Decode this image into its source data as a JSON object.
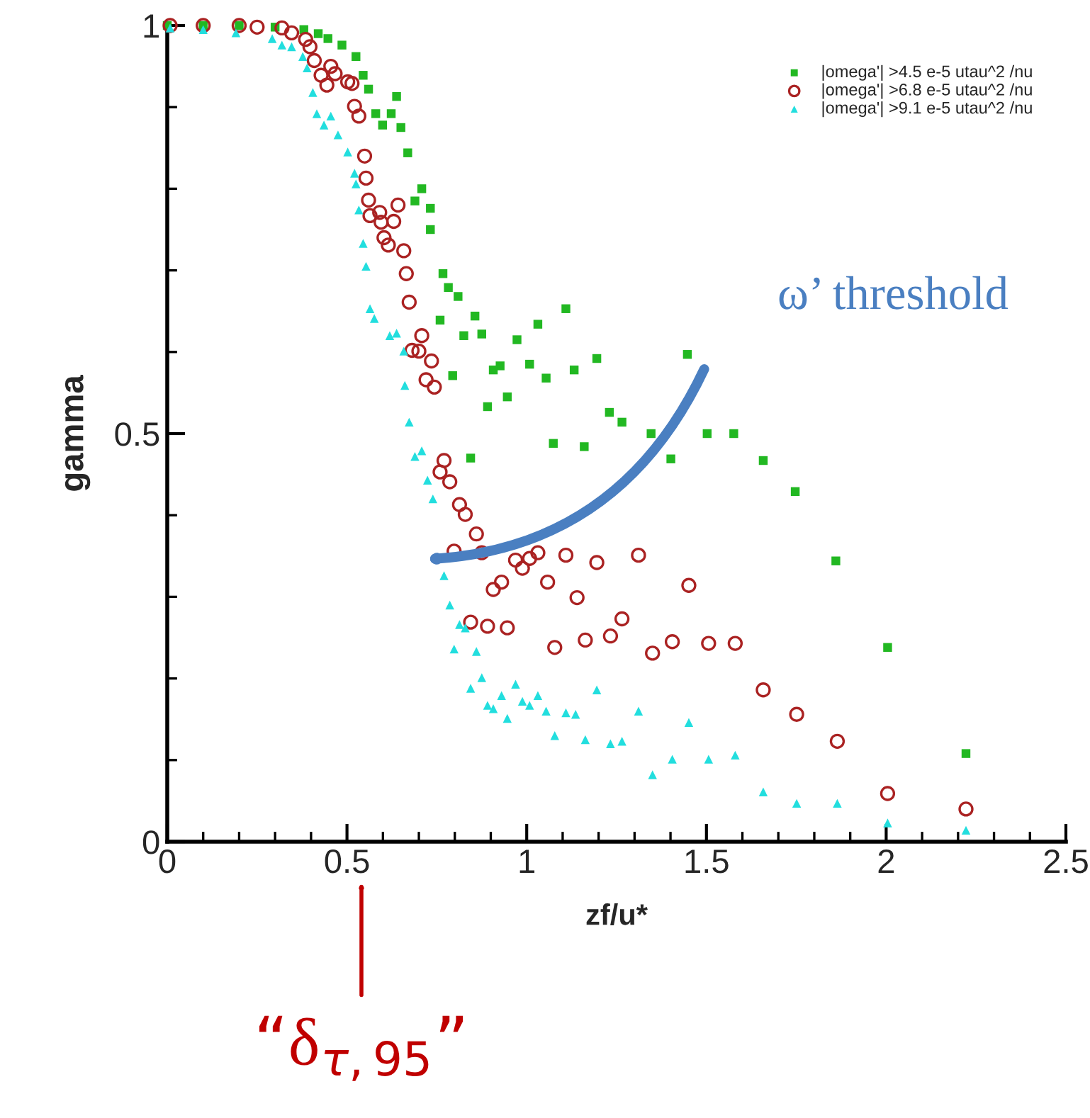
{
  "chart_data": {
    "type": "scatter",
    "xlabel": "zf/u*",
    "ylabel": "gamma",
    "xlim": [
      0,
      2.5
    ],
    "ylim": [
      0,
      1
    ],
    "xticks": [
      0,
      0.5,
      1,
      1.5,
      2,
      2.5
    ],
    "yticks": [
      0,
      0.5,
      1
    ],
    "grid": false,
    "legend": "top right",
    "series": [
      {
        "name": "|omega'| >4.5 e-5 utau^2 /nu",
        "color": "#22b822",
        "marker": "square",
        "x": [
          0,
          0.1,
          0.2,
          0.3,
          0.38,
          0.42,
          0.447,
          0.486,
          0.525,
          0.545,
          0.56,
          0.58,
          0.623,
          0.599,
          0.638,
          0.65,
          0.669,
          0.708,
          0.689,
          0.732,
          0.732,
          0.767,
          0.782,
          0.809,
          0.856,
          0.759,
          0.825,
          0.875,
          0.973,
          1.031,
          1.109,
          0.926,
          0.907,
          1.008,
          1.054,
          1.132,
          1.195,
          0.794,
          0.946,
          0.891,
          1.074,
          1.16,
          0.844,
          1.447,
          1.23,
          1.265,
          1.346,
          1.502,
          1.576,
          1.401,
          1.658,
          1.747,
          1.86,
          2.004,
          2.222
        ],
        "values": [
          1,
          1,
          1,
          0.998,
          0.995,
          0.99,
          0.984,
          0.976,
          0.962,
          0.939,
          0.922,
          0.892,
          0.892,
          0.878,
          0.913,
          0.875,
          0.844,
          0.8,
          0.785,
          0.776,
          0.75,
          0.696,
          0.679,
          0.668,
          0.644,
          0.639,
          0.62,
          0.622,
          0.615,
          0.634,
          0.653,
          0.583,
          0.578,
          0.585,
          0.568,
          0.578,
          0.592,
          0.571,
          0.545,
          0.533,
          0.488,
          0.484,
          0.47,
          0.597,
          0.526,
          0.514,
          0.5,
          0.5,
          0.5,
          0.469,
          0.467,
          0.429,
          0.344,
          0.238,
          0.108
        ]
      },
      {
        "name": "|omega'| >6.8 e-5 utau^2 /nu",
        "color": "#aa2222",
        "marker": "circle",
        "x": [
          0.008,
          0.1,
          0.2,
          0.25,
          0.319,
          0.346,
          0.385,
          0.397,
          0.409,
          0.455,
          0.467,
          0.428,
          0.444,
          0.502,
          0.514,
          0.521,
          0.533,
          0.549,
          0.553,
          0.56,
          0.564,
          0.591,
          0.642,
          0.63,
          0.595,
          0.603,
          0.615,
          0.658,
          0.665,
          0.673,
          0.708,
          0.681,
          0.7,
          0.735,
          0.72,
          0.743,
          0.77,
          0.759,
          0.786,
          0.813,
          0.829,
          0.86,
          0.798,
          0.875,
          0.969,
          1.008,
          1.031,
          0.988,
          1.109,
          1.195,
          1.311,
          0.93,
          0.907,
          1.058,
          1.14,
          1.451,
          1.265,
          0.844,
          0.891,
          0.946,
          1.078,
          1.163,
          1.233,
          1.405,
          1.35,
          1.506,
          1.58,
          1.658,
          1.751,
          1.864,
          2.004,
          2.222
        ],
        "values": [
          1,
          1,
          1,
          0.998,
          0.997,
          0.991,
          0.983,
          0.974,
          0.957,
          0.95,
          0.941,
          0.939,
          0.927,
          0.931,
          0.929,
          0.901,
          0.889,
          0.84,
          0.813,
          0.786,
          0.767,
          0.771,
          0.78,
          0.76,
          0.759,
          0.74,
          0.731,
          0.724,
          0.696,
          0.661,
          0.62,
          0.602,
          0.601,
          0.589,
          0.566,
          0.557,
          0.467,
          0.453,
          0.441,
          0.413,
          0.401,
          0.377,
          0.356,
          0.354,
          0.345,
          0.347,
          0.354,
          0.335,
          0.351,
          0.342,
          0.351,
          0.318,
          0.309,
          0.318,
          0.299,
          0.314,
          0.273,
          0.269,
          0.264,
          0.262,
          0.238,
          0.247,
          0.252,
          0.245,
          0.231,
          0.243,
          0.243,
          0.186,
          0.156,
          0.123,
          0.059,
          0.04
        ]
      },
      {
        "name": "|omega'| >9.1 e-5 utau^2 /nu",
        "color": "#22dede",
        "marker": "triangle",
        "x": [
          0.008,
          0.1,
          0.191,
          0.292,
          0.319,
          0.346,
          0.377,
          0.389,
          0.405,
          0.416,
          0.436,
          0.455,
          0.475,
          0.502,
          0.521,
          0.525,
          0.533,
          0.545,
          0.553,
          0.564,
          0.576,
          0.619,
          0.638,
          0.658,
          0.661,
          0.673,
          0.689,
          0.708,
          0.724,
          0.739,
          0.77,
          0.786,
          0.813,
          0.829,
          0.798,
          0.86,
          0.875,
          0.844,
          0.891,
          0.907,
          0.93,
          0.969,
          0.988,
          1.008,
          1.031,
          0.946,
          1.054,
          1.109,
          1.136,
          1.195,
          1.078,
          1.163,
          1.233,
          1.265,
          1.311,
          1.451,
          1.35,
          1.405,
          1.506,
          1.58,
          1.658,
          1.751,
          1.864,
          2.004,
          2.222
        ],
        "values": [
          0.997,
          0.995,
          0.991,
          0.984,
          0.976,
          0.974,
          0.962,
          0.948,
          0.918,
          0.892,
          0.878,
          0.889,
          0.866,
          0.845,
          0.819,
          0.806,
          0.774,
          0.733,
          0.705,
          0.653,
          0.641,
          0.62,
          0.623,
          0.601,
          0.559,
          0.514,
          0.472,
          0.479,
          0.443,
          0.42,
          0.326,
          0.29,
          0.266,
          0.262,
          0.236,
          0.233,
          0.201,
          0.188,
          0.167,
          0.163,
          0.179,
          0.193,
          0.172,
          0.167,
          0.179,
          0.151,
          0.16,
          0.158,
          0.156,
          0.186,
          0.13,
          0.125,
          0.12,
          0.123,
          0.16,
          0.146,
          0.082,
          0.101,
          0.101,
          0.106,
          0.061,
          0.047,
          0.047,
          0.023,
          0.014
        ]
      }
    ],
    "annotations": [
      "ω’ threshold",
      "“δ$_{τ,95}$”"
    ]
  }
}
